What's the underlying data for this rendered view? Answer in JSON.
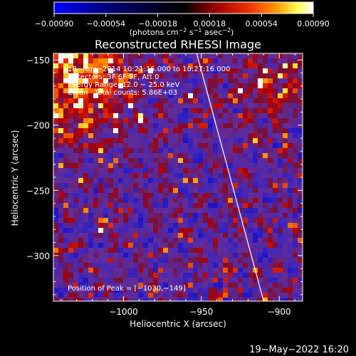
{
  "chart_data": {
    "type": "heatmap",
    "title": "Reconstructed RHESSI Image",
    "xlabel": "Heliocentric X (arcsec)",
    "ylabel": "Heliocentric Y (arcsec)",
    "xlim": [
      -1045,
      -885
    ],
    "ylim": [
      -335,
      -145
    ],
    "xticks": [
      -1000,
      -950,
      -900
    ],
    "xtick_labels": [
      "−1000",
      "−950",
      "−900"
    ],
    "yticks": [
      -150,
      -200,
      -250,
      -300
    ],
    "ytick_labels": [
      "−150",
      "−200",
      "−250",
      "−300"
    ],
    "colorbar": {
      "ticks": [
        -0.0009,
        -0.00054,
        -0.00018,
        0.00018,
        0.00054,
        0.0009
      ],
      "tick_labels": [
        "−0.00090",
        "−0.00054",
        "−0.00018",
        "0.00018",
        "0.00054",
        "0.00090"
      ],
      "unit_label": "(photons cm⁻² s⁻¹ asec⁻²)",
      "range": [
        -0.0009,
        0.0009
      ],
      "colors": [
        "#0000ff",
        "#000060",
        "#000000",
        "#8a0000",
        "#e01a00",
        "#ff8c00",
        "#ffff40",
        "#ffffff"
      ]
    },
    "annotations": [
      "18−Nov−2014 10:21:16.000 to 10:27:16.000",
      "Detectors: 3F 6F 9F, Att 0",
      "Energy Range: 12.0 − 25.0 keV",
      "Clean   Total counts: 5.86E+03"
    ],
    "peak_label": "Position of Peak = [−1030,−149]",
    "limb_line": {
      "x1": -953,
      "y1": -145,
      "x2": -910,
      "y2": -335
    },
    "timestamp": "19−May−2022 16:20",
    "background_color": "#000000",
    "text_color": "#ffffff"
  }
}
